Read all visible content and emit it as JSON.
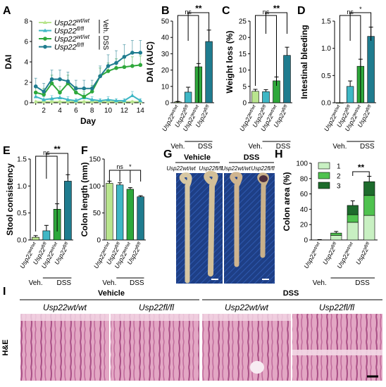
{
  "panel_letters": [
    "A",
    "B",
    "C",
    "D",
    "E",
    "F",
    "G",
    "H",
    "I"
  ],
  "colors": {
    "wt_veh": "#b9e58e",
    "fl_veh": "#3fb7c5",
    "wt_dss": "#2ea83b",
    "fl_dss": "#1f7c8f",
    "h_1": "#c8f0c2",
    "h_2": "#4fc24f",
    "h_3": "#1d6b2c"
  },
  "chart_data": [
    {
      "panel": "A",
      "type": "line",
      "xlabel": "Day",
      "ylabel": "DAI",
      "xlim": [
        0.5,
        14.5
      ],
      "ylim": [
        0,
        8
      ],
      "xticks": [
        "2",
        "4",
        "6",
        "8",
        "10",
        "12",
        "14"
      ],
      "yticks": [
        "0",
        "2",
        "4",
        "6",
        "8"
      ],
      "x": [
        1,
        2,
        3,
        4,
        5,
        6,
        7,
        8,
        9,
        10,
        11,
        12,
        13,
        14
      ],
      "legend": {
        "entries": [
          "Usp22wt/wt",
          "Usp22fl/fl",
          "Usp22wt/wt",
          "Usp22fl/fl"
        ],
        "group_labels": [
          "Veh.",
          "DSS"
        ]
      },
      "series": [
        {
          "name": "Usp22wt/wt Veh.",
          "color": "#b9e58e",
          "marker": "triangle",
          "values": [
            0.1,
            0.1,
            0.1,
            0.1,
            0.1,
            0.1,
            0.1,
            0.1,
            0.1,
            0.1,
            0.1,
            0.1,
            0.1,
            0.1
          ],
          "errors": [
            0.1,
            0.1,
            0.1,
            0.1,
            0.1,
            0.1,
            0.1,
            0.1,
            0.1,
            0.1,
            0.1,
            0.1,
            0.1,
            0.1
          ]
        },
        {
          "name": "Usp22fl/fl Veh.",
          "color": "#3fb7c5",
          "marker": "triangle",
          "values": [
            0.6,
            0.3,
            0.4,
            0.5,
            0.3,
            0.2,
            0.5,
            0.3,
            0.2,
            0.3,
            0.2,
            0.2,
            0.7,
            0.2
          ],
          "errors": [
            0.3,
            0.3,
            0.3,
            0.4,
            0.3,
            0.2,
            0.4,
            0.3,
            0.2,
            0.3,
            0.2,
            0.2,
            0.4,
            0.2
          ]
        },
        {
          "name": "Usp22wt/wt DSS",
          "color": "#2ea83b",
          "marker": "circle",
          "values": [
            1.0,
            0.8,
            1.9,
            1.0,
            1.9,
            1.0,
            0.6,
            1.1,
            2.6,
            3.1,
            3.4,
            3.5,
            3.6,
            3.7
          ],
          "errors": [
            0.6,
            0.6,
            0.8,
            0.6,
            0.8,
            0.6,
            0.5,
            0.6,
            0.8,
            0.8,
            0.9,
            0.9,
            0.9,
            0.9
          ]
        },
        {
          "name": "Usp22fl/fl DSS",
          "color": "#1f7c8f",
          "marker": "circle",
          "values": [
            1.6,
            1.1,
            2.3,
            2.3,
            2.1,
            1.4,
            1.4,
            1.4,
            2.6,
            3.6,
            3.9,
            4.5,
            4.9,
            4.9
          ],
          "errors": [
            0.8,
            0.8,
            0.9,
            0.9,
            0.9,
            0.8,
            0.8,
            0.8,
            1.0,
            1.1,
            1.2,
            1.2,
            1.2,
            1.2
          ]
        }
      ]
    },
    {
      "panel": "B",
      "type": "bar",
      "ylabel": "DAI (AUC)",
      "ylim": [
        0,
        50
      ],
      "yticks": [
        "0",
        "10",
        "20",
        "30",
        "40",
        "50"
      ],
      "categories": [
        "Usp22wt/wt",
        "Usp22fl/fl",
        "Usp22wt/wt",
        "Usp22fl/fl"
      ],
      "groups": [
        "Veh.",
        "DSS"
      ],
      "values": [
        0.5,
        6.5,
        22,
        37.5
      ],
      "errors": [
        0.3,
        3,
        2,
        7
      ],
      "significance": [
        {
          "label": "ns"
        },
        {
          "label": "**"
        }
      ]
    },
    {
      "panel": "C",
      "type": "bar",
      "ylabel": "Weight loss (%)",
      "ylim": [
        0,
        25
      ],
      "yticks": [
        "0",
        "5",
        "10",
        "15",
        "20",
        "25"
      ],
      "categories": [
        "Usp22wt/wt",
        "Usp22fl/fl",
        "Usp22wt/wt",
        "Usp22fl/fl"
      ],
      "groups": [
        "Veh.",
        "DSS"
      ],
      "values": [
        3.5,
        3.4,
        6.7,
        14.5
      ],
      "errors": [
        0.6,
        0.6,
        1.2,
        2.5
      ],
      "significance": [
        {
          "label": "ns"
        },
        {
          "label": "**"
        }
      ]
    },
    {
      "panel": "D",
      "type": "bar",
      "ylabel": "Intestinal bleeding",
      "ylim": [
        0,
        1.5
      ],
      "yticks": [
        "0.0",
        "0.5",
        "1.0",
        "1.5"
      ],
      "categories": [
        "Usp22wt/wt",
        "Usp22fl/fl",
        "Usp22wt/wt",
        "Usp22fl/fl"
      ],
      "groups": [
        "Veh.",
        "DSS"
      ],
      "values": [
        0,
        0.3,
        0.67,
        1.22
      ],
      "errors": [
        0,
        0.1,
        0.13,
        0.17
      ],
      "significance": [
        {
          "label": "ns"
        },
        {
          "label": "*"
        }
      ]
    },
    {
      "panel": "E",
      "type": "bar",
      "ylabel": "Stool consistency",
      "ylim": [
        0,
        1.5
      ],
      "yticks": [
        "0.0",
        "0.5",
        "1.0",
        "1.5"
      ],
      "categories": [
        "Usp22wt/wt",
        "Usp22fl/fl",
        "Usp22wt/wt",
        "Usp22fl/fl"
      ],
      "groups": [
        "Veh.",
        "DSS"
      ],
      "values": [
        0.05,
        0.17,
        0.57,
        1.09
      ],
      "errors": [
        0.03,
        0.1,
        0.1,
        0.12
      ],
      "significance": [
        {
          "label": "ns"
        },
        {
          "label": "**"
        }
      ]
    },
    {
      "panel": "F",
      "type": "bar",
      "ylabel": "Colon length (mm)",
      "ylim": [
        0,
        150
      ],
      "yticks": [
        "0",
        "50",
        "100",
        "150"
      ],
      "categories": [
        "Usp22wt/wt",
        "Usp22fl/fl",
        "Usp22wt/wt",
        "Usp22fl/fl"
      ],
      "groups": [
        "Veh.",
        "DSS"
      ],
      "values": [
        105,
        102,
        94,
        80
      ],
      "errors": [
        4,
        4,
        3,
        2
      ],
      "significance": [
        {
          "label": "ns"
        },
        {
          "label": "*"
        }
      ]
    },
    {
      "panel": "H",
      "type": "bar",
      "stacked": true,
      "ylabel": "Colon area (%)",
      "ylim": [
        0,
        100
      ],
      "yticks": [
        "0",
        "20",
        "40",
        "60",
        "80",
        "100"
      ],
      "categories": [
        "Usp22wt/wt",
        "Usp22fl/fl",
        "Usp22wt/wt",
        "Usp22fl/fl"
      ],
      "groups": [
        "Veh.",
        "DSS"
      ],
      "legend": [
        "1",
        "2",
        "3"
      ],
      "series": [
        {
          "name": "1",
          "values": [
            0,
            6,
            23,
            32
          ]
        },
        {
          "name": "2",
          "values": [
            0,
            3,
            10,
            26
          ]
        },
        {
          "name": "3",
          "values": [
            0,
            0,
            12,
            18
          ]
        }
      ],
      "errors": [
        0.5,
        2,
        6,
        7
      ],
      "significance": [
        {
          "label": "**"
        }
      ]
    }
  ],
  "panel_g": {
    "headers": [
      "Vehicle",
      "DSS"
    ],
    "genotypes": [
      "Usp22wt/wt",
      "Usp22fl/fl",
      "Usp22wt/wt",
      "Usp22fl/fl"
    ]
  },
  "panel_i": {
    "headers": [
      "Vehicle",
      "DSS"
    ],
    "genotypes": [
      "Usp22wt/wt",
      "Usp22fl/fl",
      "Usp22wt/wt",
      "Usp22fl/fl"
    ],
    "stain": "H&E"
  }
}
